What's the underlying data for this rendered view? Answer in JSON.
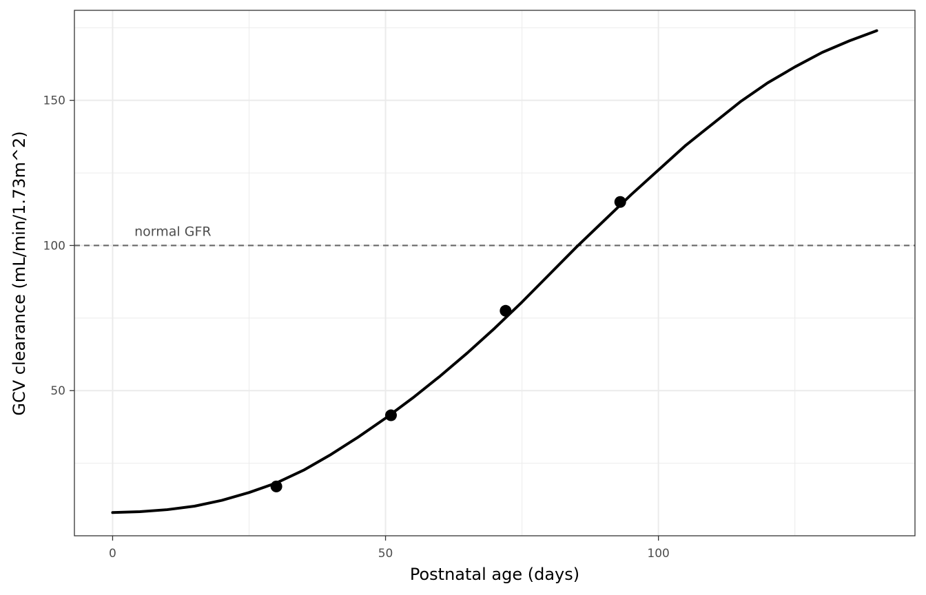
{
  "chart_data": {
    "type": "line",
    "xlabel": "Postnatal age (days)",
    "ylabel": "GCV clearance (mL/min/1.73m^2)",
    "xlim": [
      -7,
      147
    ],
    "ylim": [
      0,
      181
    ],
    "xticks": [
      0,
      50,
      100
    ],
    "yticks": [
      50,
      100,
      150
    ],
    "x_minor_gridlines": [
      25,
      75,
      125
    ],
    "y_minor_gridlines": [
      25,
      75,
      125,
      175
    ],
    "grid": true,
    "legend": "none",
    "colors": {
      "curve": "#000000",
      "points": "#000000",
      "reference_line": "#666666",
      "grid": "#ebebeb",
      "panel_border": "#333333"
    },
    "series": [
      {
        "kind": "curve",
        "x": [
          0,
          5,
          10,
          15,
          20,
          25,
          30,
          35,
          40,
          45,
          50,
          55,
          60,
          65,
          70,
          75,
          80,
          85,
          90,
          95,
          100,
          105,
          110,
          115,
          120,
          125,
          130,
          135,
          140
        ],
        "values": [
          8.0,
          8.3,
          9.0,
          10.2,
          12.2,
          14.9,
          18.2,
          22.6,
          28.0,
          34.0,
          40.5,
          47.5,
          55.0,
          63.0,
          71.5,
          80.5,
          90.0,
          99.5,
          108.5,
          117.5,
          126.0,
          134.5,
          142.0,
          149.5,
          156.0,
          161.5,
          166.5,
          170.5,
          174.0
        ]
      },
      {
        "kind": "points",
        "x": [
          30,
          51,
          72,
          93
        ],
        "values": [
          17,
          41.5,
          77.5,
          115
        ]
      }
    ],
    "reference_lines": [
      {
        "axis": "y",
        "value": 100,
        "style": "dashed",
        "label": "normal GFR",
        "label_x": 4
      }
    ]
  }
}
